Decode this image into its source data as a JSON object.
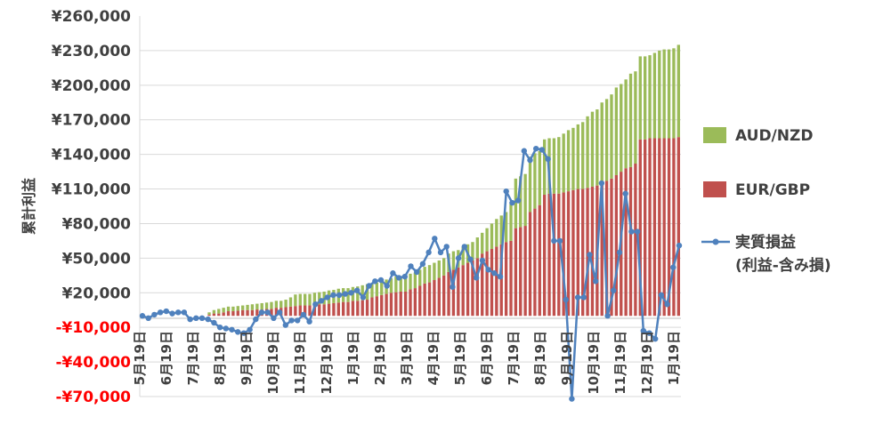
{
  "chart_data": {
    "type": "bar",
    "stacked": true,
    "title": "",
    "xlabel": "",
    "ylabel": "累計利益",
    "ylim": [
      -70000,
      260000
    ],
    "y_ticks": [
      {
        "label": "¥260,000",
        "value": 260000,
        "negative": false
      },
      {
        "label": "¥230,000",
        "value": 230000,
        "negative": false
      },
      {
        "label": "¥200,000",
        "value": 200000,
        "negative": false
      },
      {
        "label": "¥170,000",
        "value": 170000,
        "negative": false
      },
      {
        "label": "¥140,000",
        "value": 140000,
        "negative": false
      },
      {
        "label": "¥110,000",
        "value": 110000,
        "negative": false
      },
      {
        "label": "¥80,000",
        "value": 80000,
        "negative": false
      },
      {
        "label": "¥50,000",
        "value": 50000,
        "negative": false
      },
      {
        "label": "¥20,000",
        "value": 20000,
        "negative": false
      },
      {
        "label": "-¥10,000",
        "value": -10000,
        "negative": true
      },
      {
        "label": "-¥40,000",
        "value": -40000,
        "negative": true
      },
      {
        "label": "-¥70,000",
        "value": -70000,
        "negative": true
      }
    ],
    "x_ticks": [
      "5月19日",
      "6月19日",
      "7月19日",
      "8月19日",
      "9月19日",
      "10月19日",
      "11月19日",
      "12月19日",
      "1月19日",
      "2月19日",
      "3月19日",
      "4月19日",
      "5月19日",
      "6月19日",
      "7月19日",
      "8月19日",
      "9月19日",
      "10月19日",
      "11月19日",
      "12月19日",
      "1月19日"
    ],
    "grid": true,
    "legend_position": "right",
    "series": [
      {
        "name": "EUR/GBP",
        "kind": "bar",
        "color": "#c0504d",
        "values": [
          0,
          0,
          0,
          0,
          0,
          0,
          0,
          0,
          0,
          0,
          0,
          0,
          0,
          0,
          1000,
          2000,
          2000,
          3000,
          4000,
          4000,
          4500,
          5000,
          5000,
          5000,
          5500,
          5500,
          6000,
          6000,
          7000,
          7000,
          7500,
          8000,
          8500,
          9000,
          9000,
          9000,
          9500,
          10000,
          10000,
          10500,
          11000,
          11500,
          12000,
          12000,
          13000,
          13000,
          13500,
          14000,
          16000,
          17000,
          18000,
          19000,
          20000,
          20500,
          21000,
          21000,
          23000,
          24000,
          26000,
          28000,
          29000,
          31000,
          33000,
          35000,
          38000,
          40000,
          42000,
          44000,
          46000,
          48000,
          50000,
          54000,
          56000,
          58000,
          60000,
          62000,
          64000,
          65000,
          76000,
          77000,
          78000,
          90000,
          93000,
          96000,
          105000,
          106000,
          106000,
          106000,
          107000,
          108000,
          109000,
          110000,
          110000,
          111000,
          112000,
          113000,
          115000,
          117000,
          119000,
          122000,
          125000,
          128000,
          129000,
          132000,
          153000,
          153000,
          154000,
          154000,
          154000,
          154000,
          154000,
          154000,
          155000
        ]
      },
      {
        "name": "AUD/NZD",
        "kind": "bar",
        "color": "#9bbb59",
        "values": [
          0,
          0,
          0,
          0,
          0,
          0,
          0,
          0,
          0,
          0,
          0,
          0,
          0,
          0,
          2000,
          3000,
          4000,
          4000,
          4000,
          4000,
          4000,
          4000,
          4500,
          5000,
          5000,
          5500,
          5500,
          6000,
          6000,
          6000,
          6500,
          8000,
          10000,
          10000,
          10000,
          10000,
          10500,
          10500,
          11000,
          11500,
          11500,
          12000,
          12000,
          12000,
          12000,
          12500,
          13000,
          13500,
          12000,
          12000,
          12000,
          12500,
          12500,
          13500,
          13500,
          14000,
          13500,
          13500,
          14000,
          14500,
          15000,
          15000,
          15000,
          15000,
          16000,
          16000,
          15000,
          16000,
          16000,
          16000,
          18000,
          18000,
          20000,
          22000,
          24000,
          25000,
          26000,
          32000,
          43000,
          44000,
          45000,
          48000,
          48000,
          47000,
          48000,
          48000,
          48000,
          49000,
          51000,
          53000,
          54000,
          56000,
          58000,
          62000,
          65000,
          66000,
          70000,
          71000,
          73000,
          76000,
          76000,
          77000,
          81000,
          80000,
          72000,
          72000,
          72000,
          74000,
          76000,
          77000,
          77000,
          78000,
          80000
        ]
      },
      {
        "name": "実質損益\n(利益-含み損)",
        "kind": "line",
        "color": "#4f81bd",
        "values": [
          0,
          -2000,
          1000,
          3000,
          4000,
          2000,
          3000,
          3000,
          -3000,
          -2000,
          -2000,
          -3000,
          -6000,
          -10000,
          -11000,
          -12000,
          -14000,
          -15000,
          -12000,
          -3000,
          3000,
          3000,
          -2000,
          3000,
          -8000,
          -4000,
          -4000,
          1000,
          -5000,
          10000,
          13000,
          16000,
          18000,
          18000,
          19000,
          20000,
          22000,
          16000,
          26000,
          30000,
          31000,
          26000,
          37000,
          33000,
          34000,
          43000,
          38000,
          45000,
          55000,
          67000,
          55000,
          60000,
          25000,
          50000,
          60000,
          49000,
          33000,
          48000,
          40000,
          37000,
          34000,
          108000,
          98000,
          100000,
          143000,
          135000,
          145000,
          144000,
          136000,
          65000,
          65000,
          14000,
          -72000,
          16000,
          16000,
          53000,
          30000,
          115000,
          0,
          22000,
          55000,
          106000,
          73000,
          73000,
          -13000,
          -15000,
          -20000,
          18000,
          10000,
          42000,
          61000
        ]
      }
    ]
  }
}
